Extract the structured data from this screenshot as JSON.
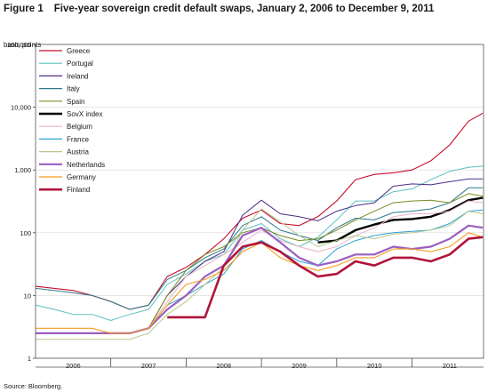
{
  "figure": {
    "label": "Figure 1",
    "title": "Five-year sovereign credit default swaps, January 2, 2006 to December 9, 2011",
    "ylabel": "basis points",
    "source": "Source: Bloomberg."
  },
  "chart_data": {
    "type": "line",
    "title": "Five-year sovereign credit default swaps, January 2, 2006 to December 9, 2011",
    "ylabel": "basis points",
    "yscale": "log",
    "ylim": [
      1,
      100000
    ],
    "yticks": [
      {
        "value": 1,
        "label": "1"
      },
      {
        "value": 10,
        "label": "10"
      },
      {
        "value": 100,
        "label": "100"
      },
      {
        "value": 1000,
        "label": "1,000"
      },
      {
        "value": 10000,
        "label": "10,000"
      },
      {
        "value": 100000,
        "label": "100,000"
      }
    ],
    "xlim": [
      2006.0,
      2011.95
    ],
    "xticks": [
      "2006",
      "2007",
      "2008",
      "2009",
      "2010",
      "2011"
    ],
    "legend_position": "top-left",
    "x": [
      2006.0,
      2006.25,
      2006.5,
      2006.75,
      2007.0,
      2007.25,
      2007.5,
      2007.75,
      2008.0,
      2008.25,
      2008.5,
      2008.75,
      2009.0,
      2009.25,
      2009.5,
      2009.75,
      2010.0,
      2010.25,
      2010.5,
      2010.75,
      2011.0,
      2011.25,
      2011.5,
      2011.75,
      2011.94
    ],
    "series": [
      {
        "name": "Greece",
        "color": "#c8102e",
        "width": 1.1,
        "values": [
          14,
          13,
          12,
          10,
          8,
          6,
          7,
          20,
          28,
          45,
          80,
          170,
          230,
          140,
          130,
          180,
          320,
          700,
          850,
          900,
          1000,
          1400,
          2500,
          6000,
          8000
        ]
      },
      {
        "name": "Portugal",
        "color": "#5bc0be",
        "width": 1.0,
        "values": [
          7,
          6,
          5,
          5,
          4,
          5,
          6,
          15,
          22,
          35,
          45,
          110,
          140,
          80,
          60,
          85,
          160,
          320,
          320,
          450,
          500,
          700,
          950,
          1100,
          1150
        ]
      },
      {
        "name": "Ireland",
        "color": "#4b2e83",
        "width": 1.0,
        "values": [
          2.5,
          2.5,
          2.5,
          2.5,
          2.5,
          2.5,
          3,
          10,
          20,
          35,
          50,
          190,
          330,
          200,
          180,
          155,
          220,
          270,
          300,
          550,
          600,
          580,
          650,
          720,
          720
        ]
      },
      {
        "name": "Italy",
        "color": "#2c7a8c",
        "width": 1.0,
        "values": [
          13,
          12,
          11,
          10,
          8,
          6,
          7,
          18,
          25,
          40,
          55,
          130,
          180,
          110,
          90,
          75,
          120,
          170,
          160,
          210,
          220,
          240,
          300,
          520,
          520
        ]
      },
      {
        "name": "Spain",
        "color": "#7a8b1f",
        "width": 1.0,
        "values": [
          2.5,
          2.5,
          2.5,
          2.5,
          2.5,
          2.5,
          3,
          10,
          25,
          45,
          60,
          100,
          120,
          90,
          75,
          80,
          110,
          160,
          220,
          300,
          320,
          330,
          300,
          420,
          380
        ]
      },
      {
        "name": "SovX index",
        "color": "#000000",
        "width": 2.4,
        "values": [
          null,
          null,
          null,
          null,
          null,
          null,
          null,
          null,
          null,
          null,
          null,
          null,
          null,
          null,
          null,
          70,
          75,
          110,
          135,
          160,
          165,
          180,
          230,
          330,
          360
        ]
      },
      {
        "name": "Belgium",
        "color": "#e8b4c8",
        "width": 1.0,
        "values": [
          2.5,
          2.5,
          2.5,
          2.5,
          2.5,
          2.5,
          3,
          8,
          20,
          30,
          45,
          70,
          110,
          75,
          60,
          50,
          60,
          90,
          120,
          180,
          200,
          200,
          220,
          320,
          300
        ]
      },
      {
        "name": "France",
        "color": "#2ea0d6",
        "width": 1.0,
        "values": [
          2.5,
          2.5,
          2.5,
          2.5,
          2.5,
          2.5,
          3,
          7,
          10,
          15,
          22,
          55,
          75,
          50,
          35,
          30,
          55,
          75,
          90,
          100,
          105,
          110,
          140,
          220,
          230
        ]
      },
      {
        "name": "Austria",
        "color": "#b5c98a",
        "width": 1.0,
        "values": [
          2,
          2,
          2,
          2,
          2,
          2,
          2.5,
          5,
          8,
          15,
          28,
          110,
          240,
          150,
          90,
          60,
          75,
          90,
          80,
          95,
          100,
          110,
          130,
          220,
          200
        ]
      },
      {
        "name": "Netherlands",
        "color": "#9b5fc0",
        "width": 2.2,
        "values": [
          2.5,
          2.5,
          2.5,
          2.5,
          2.5,
          2.5,
          3,
          6,
          10,
          20,
          30,
          90,
          120,
          70,
          40,
          30,
          35,
          45,
          45,
          60,
          55,
          60,
          80,
          130,
          120
        ]
      },
      {
        "name": "Germany",
        "color": "#f39c1e",
        "width": 1.1,
        "values": [
          3,
          3,
          3,
          3,
          2.5,
          2.5,
          3,
          7,
          15,
          18,
          25,
          50,
          70,
          40,
          30,
          25,
          30,
          40,
          40,
          55,
          55,
          50,
          60,
          100,
          85
        ]
      },
      {
        "name": "Finland",
        "color": "#b0153a",
        "width": 2.6,
        "values": [
          null,
          null,
          null,
          null,
          null,
          null,
          null,
          4.5,
          4.5,
          4.5,
          30,
          60,
          70,
          50,
          30,
          20,
          22,
          35,
          30,
          40,
          40,
          35,
          45,
          80,
          85
        ]
      }
    ]
  }
}
